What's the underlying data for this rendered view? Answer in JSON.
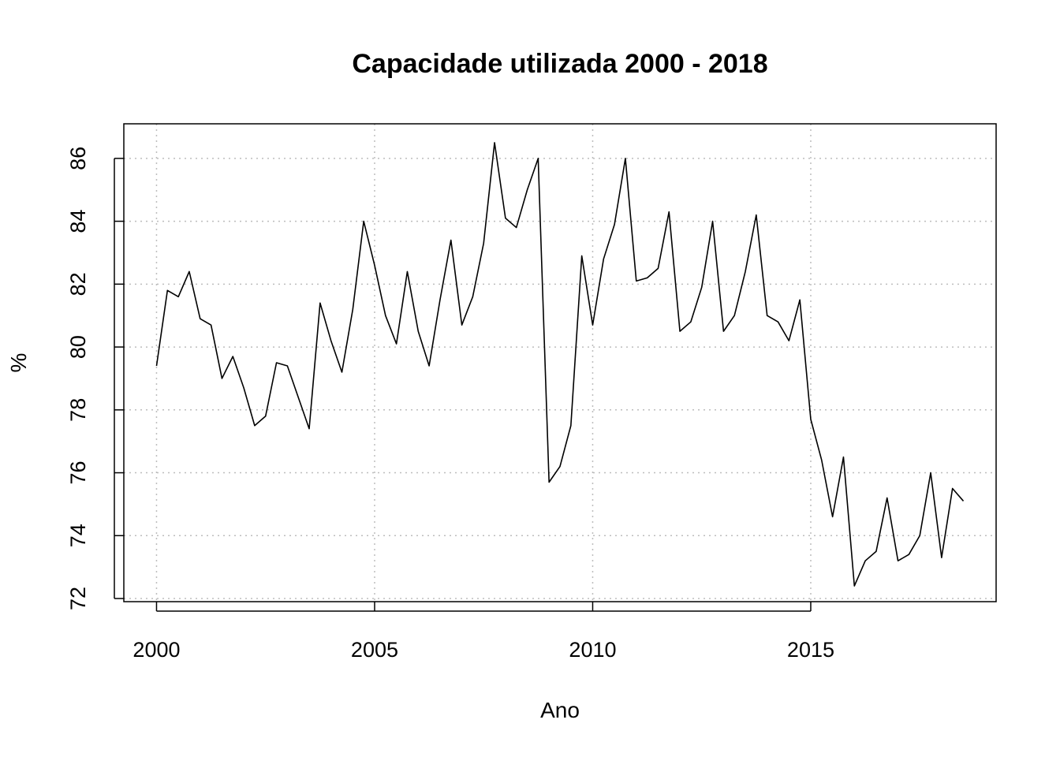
{
  "chart_data": {
    "type": "line",
    "title": "Capacidade utilizada 2000 - 2018",
    "xlabel": "Ano",
    "ylabel": "%",
    "xlim": [
      1999.25,
      2019.25
    ],
    "ylim": [
      71.9,
      87.1
    ],
    "x_ticks": [
      2000,
      2005,
      2010,
      2015
    ],
    "y_ticks": [
      72,
      74,
      76,
      78,
      80,
      82,
      84,
      86
    ],
    "grid": true,
    "legend": "none",
    "x_start": 2000,
    "x_step": 0.25,
    "series": [
      {
        "values": [
          79.4,
          81.8,
          81.6,
          82.4,
          80.9,
          80.7,
          79.0,
          79.7,
          78.7,
          77.5,
          77.8,
          79.5,
          79.4,
          78.4,
          77.4,
          81.4,
          80.2,
          79.2,
          81.2,
          84.0,
          82.6,
          81.0,
          80.1,
          82.4,
          80.5,
          79.4,
          81.5,
          83.4,
          80.7,
          81.6,
          83.3,
          86.5,
          84.1,
          83.8,
          85.0,
          86.0,
          75.7,
          76.2,
          77.5,
          82.9,
          80.7,
          82.8,
          83.9,
          86.0,
          82.1,
          82.2,
          82.5,
          84.3,
          80.5,
          80.8,
          81.9,
          84.0,
          80.5,
          81.0,
          82.4,
          84.2,
          81.0,
          80.8,
          80.2,
          81.5,
          77.7,
          76.4,
          74.6,
          76.5,
          72.4,
          73.2,
          73.5,
          75.2,
          73.2,
          73.4,
          74.0,
          76.0,
          73.3,
          75.5,
          75.1
        ]
      }
    ]
  }
}
